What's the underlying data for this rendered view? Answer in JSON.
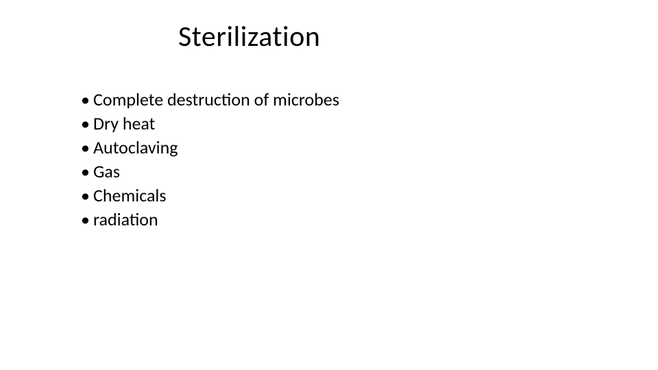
{
  "slide": {
    "title": "Sterilization",
    "title_fontsize": 42,
    "title_color": "#000000",
    "body_fontsize": 26,
    "body_color": "#000000",
    "background_color": "#ffffff",
    "bullet_glyph": "•",
    "bullets": [
      "Complete destruction of microbes",
      "Dry heat",
      "Autoclaving",
      "Gas",
      "Chemicals",
      "radiation"
    ]
  }
}
